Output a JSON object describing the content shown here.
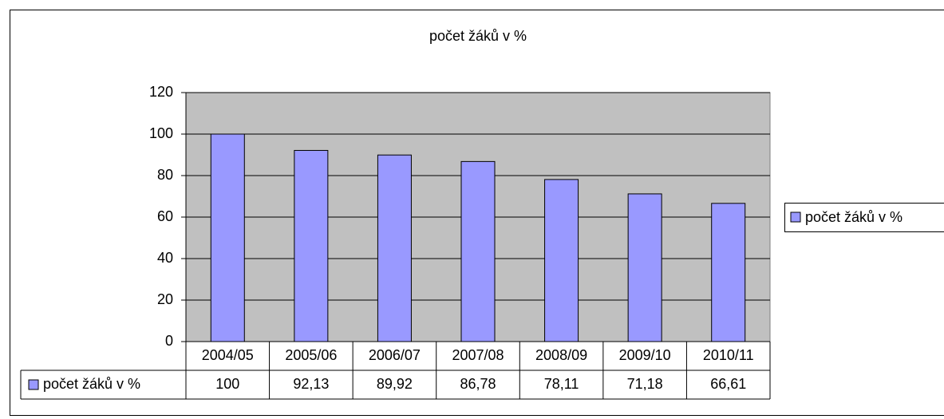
{
  "chart_data": {
    "type": "bar",
    "title": "počet žáků v  %",
    "categories": [
      "2004/05",
      "2005/06",
      "2006/07",
      "2007/08",
      "2008/09",
      "2009/10",
      "2010/11"
    ],
    "series": [
      {
        "name": "počet žáků v  %",
        "color": "#9999ff",
        "values": [
          100,
          92.13,
          89.92,
          86.78,
          78.11,
          71.18,
          66.61
        ],
        "value_labels": [
          "100",
          "92,13",
          "89,92",
          "86,78",
          "78,11",
          "71,18",
          "66,61"
        ]
      }
    ],
    "ylim": [
      0,
      120
    ],
    "yticks": [
      0,
      20,
      40,
      60,
      80,
      100,
      120
    ],
    "grid": true,
    "legend": "right",
    "plot_background": "#c0c0c0"
  }
}
